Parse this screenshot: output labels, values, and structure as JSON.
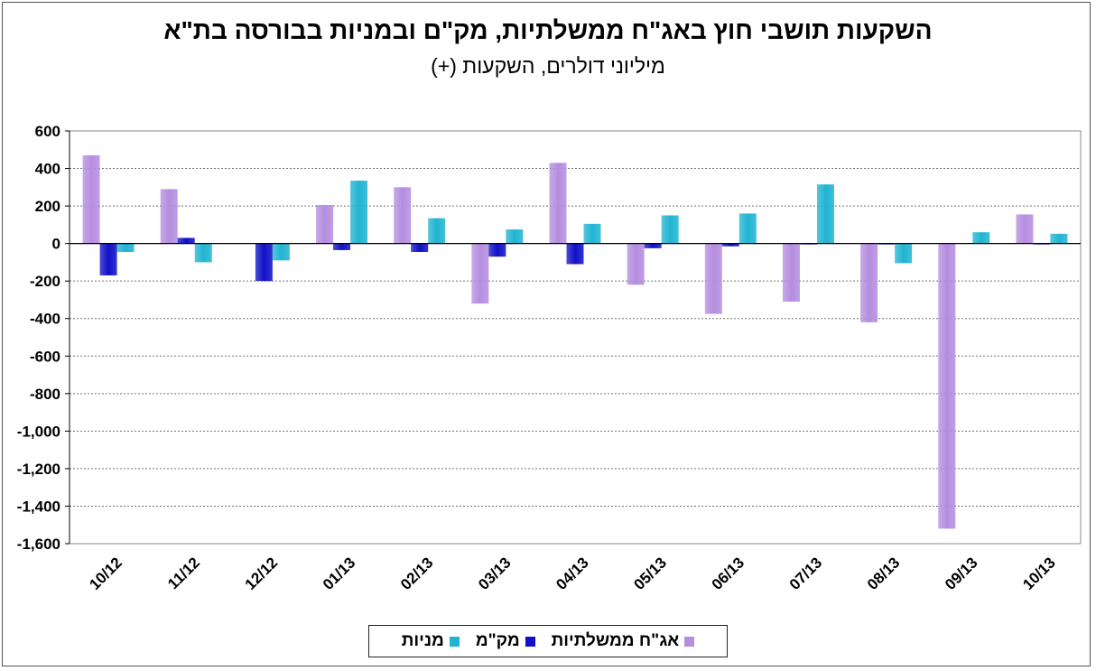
{
  "chart_data": {
    "type": "bar",
    "title": "השקעות תושבי חוץ באג\"ח ממשלתיות, מק\"ם ובמניות בבורסה בת\"א",
    "subtitle": "מיליוני דולרים, השקעות (+)",
    "categories": [
      "10/12",
      "11/12",
      "12/12",
      "01/13",
      "02/13",
      "03/13",
      "04/13",
      "05/13",
      "06/13",
      "07/13",
      "08/13",
      "09/13",
      "10/13"
    ],
    "series": [
      {
        "name": "אג\"ח ממשלתיות",
        "color": "#b58de0",
        "values": [
          470,
          290,
          0,
          205,
          300,
          -320,
          430,
          -220,
          -375,
          -310,
          -420,
          -1520,
          155
        ]
      },
      {
        "name": "מק\"מ",
        "color": "#1010c8",
        "values": [
          -170,
          30,
          -200,
          -35,
          -45,
          -70,
          -110,
          -25,
          -15,
          -5,
          -5,
          0,
          -5
        ]
      },
      {
        "name": "מניות",
        "color": "#20b4d2",
        "values": [
          -45,
          -100,
          -90,
          335,
          135,
          75,
          105,
          150,
          160,
          315,
          -105,
          60,
          52
        ]
      }
    ],
    "ylim": [
      -1600,
      600
    ],
    "yticks": [
      600,
      400,
      200,
      0,
      -200,
      -400,
      -600,
      -800,
      -1000,
      -1200,
      -1400,
      -1600
    ],
    "ytick_labels": [
      "600",
      "400",
      "200",
      "0",
      "-200",
      "-400",
      "-600",
      "-800",
      "-1,000",
      "-1,200",
      "-1,400",
      "-1,600"
    ],
    "grid": true,
    "legend_position": "bottom-center"
  }
}
